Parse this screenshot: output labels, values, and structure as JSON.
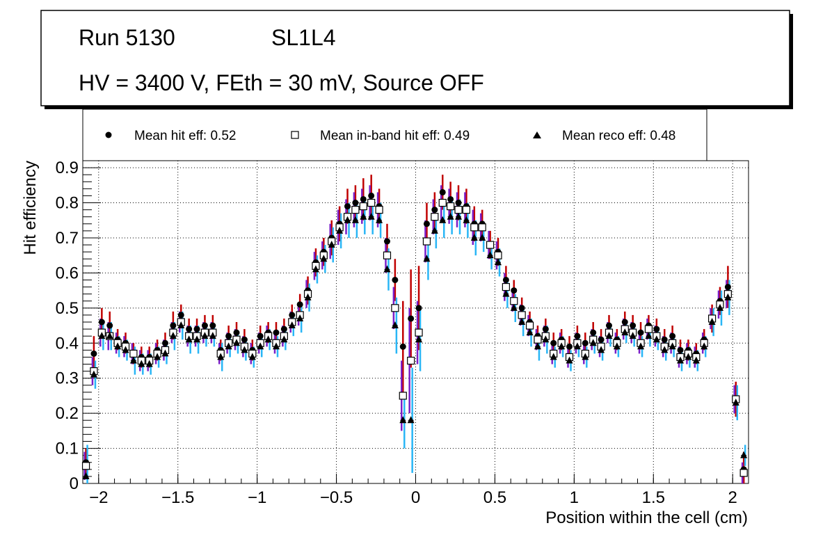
{
  "chart_data": {
    "type": "scatter",
    "title_line1": "Run 5130",
    "title_chamber": "SL1L4",
    "title_line2": "HV = 3400 V, FEth = 30 mV, Source OFF",
    "xlabel": "Position within the cell (cm)",
    "ylabel": "Hit efficiency",
    "xlim": [
      -2.1,
      2.1
    ],
    "ylim": [
      0,
      0.92
    ],
    "x_ticks": [
      -2,
      -1.5,
      -1,
      -0.5,
      0,
      0.5,
      1,
      1.5,
      2
    ],
    "x_tick_labels": [
      "−2",
      "−1.5",
      "−1",
      "−0.5",
      "0",
      "0.5",
      "1",
      "1.5",
      "2"
    ],
    "y_ticks": [
      0,
      0.1,
      0.2,
      0.3,
      0.4,
      0.5,
      0.6,
      0.7,
      0.8,
      0.9
    ],
    "y_tick_labels": [
      "0",
      "0.1",
      "0.2",
      "0.3",
      "0.4",
      "0.5",
      "0.6",
      "0.7",
      "0.8",
      "0.9"
    ],
    "grid": true,
    "legend": [
      {
        "name": "Mean hit  eff: 0.52",
        "marker": "filled-circle"
      },
      {
        "name": "Mean in-band hit eff: 0.49",
        "marker": "open-square"
      },
      {
        "name": "Mean reco eff: 0.48",
        "marker": "filled-triangle"
      }
    ],
    "x": [
      -2.08,
      -2.03,
      -1.98,
      -1.93,
      -1.88,
      -1.83,
      -1.78,
      -1.73,
      -1.68,
      -1.63,
      -1.58,
      -1.53,
      -1.48,
      -1.43,
      -1.38,
      -1.33,
      -1.28,
      -1.23,
      -1.18,
      -1.13,
      -1.08,
      -1.03,
      -0.98,
      -0.93,
      -0.88,
      -0.83,
      -0.78,
      -0.73,
      -0.68,
      -0.63,
      -0.58,
      -0.53,
      -0.48,
      -0.43,
      -0.38,
      -0.33,
      -0.28,
      -0.23,
      -0.18,
      -0.13,
      -0.08,
      -0.03,
      0.02,
      0.07,
      0.12,
      0.17,
      0.22,
      0.27,
      0.32,
      0.37,
      0.42,
      0.47,
      0.52,
      0.57,
      0.62,
      0.67,
      0.72,
      0.77,
      0.82,
      0.87,
      0.92,
      0.97,
      1.02,
      1.07,
      1.12,
      1.17,
      1.22,
      1.27,
      1.32,
      1.37,
      1.42,
      1.47,
      1.52,
      1.57,
      1.62,
      1.67,
      1.72,
      1.77,
      1.82,
      1.87,
      1.92,
      1.97,
      2.02,
      2.07
    ],
    "series": [
      {
        "name": "hit efficiency",
        "color": "#c00000",
        "values": [
          0.06,
          0.37,
          0.46,
          0.45,
          0.41,
          0.4,
          0.37,
          0.36,
          0.36,
          0.38,
          0.4,
          0.45,
          0.48,
          0.44,
          0.44,
          0.45,
          0.45,
          0.38,
          0.42,
          0.43,
          0.41,
          0.38,
          0.42,
          0.43,
          0.43,
          0.44,
          0.48,
          0.51,
          0.55,
          0.63,
          0.66,
          0.7,
          0.74,
          0.79,
          0.8,
          0.81,
          0.82,
          0.79,
          0.69,
          0.58,
          0.39,
          0.47,
          0.5,
          0.74,
          0.78,
          0.83,
          0.81,
          0.8,
          0.79,
          0.74,
          0.74,
          0.68,
          0.66,
          0.58,
          0.55,
          0.5,
          0.46,
          0.42,
          0.44,
          0.4,
          0.41,
          0.39,
          0.42,
          0.4,
          0.43,
          0.41,
          0.45,
          0.41,
          0.46,
          0.45,
          0.43,
          0.45,
          0.44,
          0.41,
          0.42,
          0.38,
          0.38,
          0.37,
          0.41,
          0.47,
          0.52,
          0.56,
          0.24,
          0.04
        ],
        "err": [
          0.04,
          0.05,
          0.04,
          0.04,
          0.03,
          0.03,
          0.03,
          0.03,
          0.03,
          0.03,
          0.03,
          0.04,
          0.03,
          0.03,
          0.03,
          0.03,
          0.03,
          0.03,
          0.03,
          0.03,
          0.03,
          0.03,
          0.03,
          0.03,
          0.03,
          0.03,
          0.03,
          0.03,
          0.04,
          0.04,
          0.04,
          0.05,
          0.05,
          0.05,
          0.05,
          0.06,
          0.06,
          0.05,
          0.05,
          0.06,
          0.13,
          0.14,
          0.12,
          0.06,
          0.05,
          0.05,
          0.05,
          0.05,
          0.05,
          0.05,
          0.04,
          0.04,
          0.04,
          0.04,
          0.03,
          0.03,
          0.03,
          0.03,
          0.03,
          0.03,
          0.03,
          0.03,
          0.03,
          0.03,
          0.03,
          0.03,
          0.03,
          0.03,
          0.03,
          0.03,
          0.03,
          0.03,
          0.03,
          0.03,
          0.03,
          0.03,
          0.03,
          0.03,
          0.03,
          0.04,
          0.04,
          0.06,
          0.05,
          0.05
        ]
      },
      {
        "name": "in-band hit efficiency",
        "color": "#7a1ec8",
        "values": [
          0.05,
          0.32,
          0.43,
          0.42,
          0.4,
          0.39,
          0.37,
          0.35,
          0.35,
          0.37,
          0.38,
          0.43,
          0.46,
          0.42,
          0.42,
          0.43,
          0.43,
          0.37,
          0.4,
          0.41,
          0.39,
          0.37,
          0.4,
          0.42,
          0.4,
          0.42,
          0.46,
          0.48,
          0.54,
          0.62,
          0.65,
          0.69,
          0.73,
          0.76,
          0.78,
          0.79,
          0.8,
          0.78,
          0.65,
          0.5,
          0.25,
          0.35,
          0.43,
          0.69,
          0.76,
          0.8,
          0.79,
          0.78,
          0.78,
          0.73,
          0.73,
          0.68,
          0.65,
          0.56,
          0.52,
          0.48,
          0.45,
          0.41,
          0.42,
          0.37,
          0.4,
          0.36,
          0.4,
          0.37,
          0.41,
          0.39,
          0.43,
          0.4,
          0.44,
          0.43,
          0.4,
          0.44,
          0.42,
          0.39,
          0.4,
          0.36,
          0.37,
          0.36,
          0.4,
          0.47,
          0.51,
          0.54,
          0.24,
          0.03
        ],
        "err": [
          0.04,
          0.04,
          0.04,
          0.04,
          0.03,
          0.03,
          0.03,
          0.03,
          0.03,
          0.03,
          0.03,
          0.03,
          0.03,
          0.03,
          0.03,
          0.03,
          0.03,
          0.03,
          0.03,
          0.03,
          0.03,
          0.03,
          0.03,
          0.03,
          0.03,
          0.03,
          0.03,
          0.03,
          0.04,
          0.04,
          0.04,
          0.05,
          0.05,
          0.05,
          0.05,
          0.05,
          0.05,
          0.05,
          0.05,
          0.06,
          0.1,
          0.15,
          0.09,
          0.06,
          0.05,
          0.05,
          0.05,
          0.05,
          0.05,
          0.05,
          0.04,
          0.04,
          0.04,
          0.04,
          0.03,
          0.03,
          0.03,
          0.03,
          0.03,
          0.03,
          0.03,
          0.03,
          0.03,
          0.03,
          0.03,
          0.03,
          0.03,
          0.03,
          0.03,
          0.03,
          0.03,
          0.03,
          0.03,
          0.03,
          0.03,
          0.03,
          0.03,
          0.03,
          0.03,
          0.03,
          0.04,
          0.04,
          0.04,
          0.03
        ]
      },
      {
        "name": "reco efficiency",
        "color": "#29b6f6",
        "values": [
          0.02,
          0.31,
          0.42,
          0.42,
          0.39,
          0.38,
          0.35,
          0.34,
          0.34,
          0.36,
          0.37,
          0.42,
          0.45,
          0.41,
          0.41,
          0.42,
          0.42,
          0.36,
          0.39,
          0.4,
          0.38,
          0.36,
          0.39,
          0.41,
          0.39,
          0.41,
          0.45,
          0.47,
          0.53,
          0.61,
          0.64,
          0.68,
          0.72,
          0.75,
          0.75,
          0.76,
          0.76,
          0.75,
          0.61,
          0.45,
          0.18,
          0.18,
          0.41,
          0.64,
          0.72,
          0.75,
          0.76,
          0.76,
          0.75,
          0.7,
          0.7,
          0.65,
          0.63,
          0.54,
          0.5,
          0.46,
          0.43,
          0.39,
          0.41,
          0.36,
          0.39,
          0.35,
          0.39,
          0.36,
          0.4,
          0.38,
          0.42,
          0.39,
          0.43,
          0.42,
          0.39,
          0.42,
          0.41,
          0.38,
          0.39,
          0.35,
          0.36,
          0.35,
          0.39,
          0.46,
          0.5,
          0.53,
          0.23,
          0.08
        ],
        "err": [
          0.09,
          0.04,
          0.04,
          0.04,
          0.03,
          0.03,
          0.04,
          0.03,
          0.03,
          0.03,
          0.03,
          0.04,
          0.04,
          0.04,
          0.04,
          0.03,
          0.03,
          0.04,
          0.03,
          0.03,
          0.03,
          0.03,
          0.03,
          0.03,
          0.03,
          0.03,
          0.03,
          0.04,
          0.04,
          0.04,
          0.04,
          0.05,
          0.05,
          0.05,
          0.05,
          0.05,
          0.05,
          0.05,
          0.06,
          0.08,
          0.08,
          0.15,
          0.09,
          0.06,
          0.05,
          0.05,
          0.05,
          0.05,
          0.05,
          0.05,
          0.04,
          0.04,
          0.04,
          0.04,
          0.04,
          0.04,
          0.04,
          0.04,
          0.04,
          0.03,
          0.03,
          0.03,
          0.03,
          0.03,
          0.03,
          0.03,
          0.03,
          0.03,
          0.03,
          0.03,
          0.03,
          0.03,
          0.03,
          0.03,
          0.03,
          0.03,
          0.03,
          0.03,
          0.03,
          0.04,
          0.05,
          0.05,
          0.05,
          0.03
        ]
      }
    ]
  }
}
